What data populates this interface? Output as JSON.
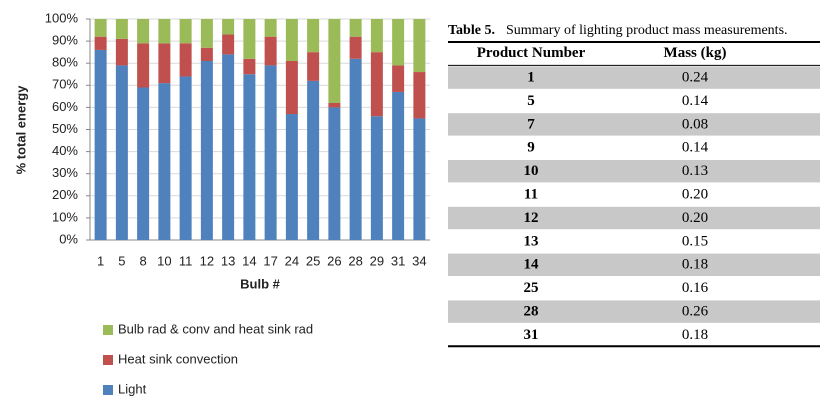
{
  "chart_data": {
    "type": "stacked_bar",
    "x_label": "Bulb #",
    "y_label": "% total energy",
    "categories": [
      "1",
      "5",
      "8",
      "10",
      "11",
      "12",
      "13",
      "14",
      "17",
      "24",
      "25",
      "26",
      "28",
      "29",
      "31",
      "34"
    ],
    "series": [
      {
        "name": "Light",
        "color": "#4f81bd",
        "values": [
          86,
          79,
          69,
          71,
          74,
          81,
          84,
          75,
          79,
          57,
          72,
          60,
          82,
          56,
          67,
          55
        ]
      },
      {
        "name": "Heat sink convection",
        "color": "#c0504d",
        "values": [
          6,
          12,
          20,
          18,
          15,
          6,
          9,
          7,
          13,
          24,
          13,
          2,
          10,
          29,
          12,
          21
        ]
      },
      {
        "name": "Bulb rad & conv and heat sink rad",
        "color": "#9bbb59",
        "values": [
          8,
          9,
          11,
          11,
          11,
          13,
          7,
          18,
          8,
          19,
          15,
          38,
          8,
          15,
          21,
          24
        ]
      }
    ],
    "ylim": [
      0,
      100
    ],
    "yticks": [
      {
        "value": 0,
        "label": "0%"
      },
      {
        "value": 10,
        "label": "10%"
      },
      {
        "value": 20,
        "label": "20%"
      },
      {
        "value": 30,
        "label": "30%"
      },
      {
        "value": 40,
        "label": "40%"
      },
      {
        "value": 50,
        "label": "50%"
      },
      {
        "value": 60,
        "label": "60%"
      },
      {
        "value": 70,
        "label": "70%"
      },
      {
        "value": 80,
        "label": "80%"
      },
      {
        "value": 90,
        "label": "90%"
      },
      {
        "value": 100,
        "label": "100%"
      }
    ],
    "grid": true,
    "legend": "bottom"
  },
  "table": {
    "caption_label": "Table 5.",
    "caption": "Summary of lighting product mass measurements.",
    "header": [
      "Product Number",
      "Mass (kg)"
    ],
    "rows": [
      [
        "1",
        "0.24"
      ],
      [
        "5",
        "0.14"
      ],
      [
        "7",
        "0.08"
      ],
      [
        "9",
        "0.14"
      ],
      [
        "10",
        "0.13"
      ],
      [
        "11",
        "0.20"
      ],
      [
        "12",
        "0.20"
      ],
      [
        "13",
        "0.15"
      ],
      [
        "14",
        "0.18"
      ],
      [
        "25",
        "0.16"
      ],
      [
        "28",
        "0.26"
      ],
      [
        "31",
        "0.18"
      ]
    ]
  }
}
